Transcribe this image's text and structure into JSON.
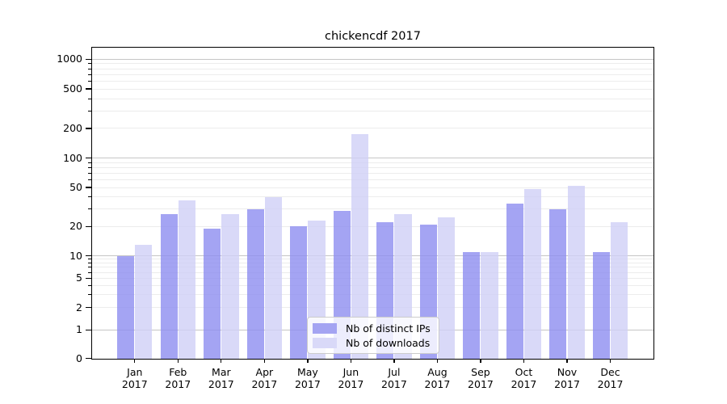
{
  "title": "chickencdf 2017",
  "colors": {
    "ips_solid": "#a4a4f2",
    "downloads_solid": "#d9d9f8",
    "ips_bar": "rgba(141,141,240,0.8)",
    "downloads_bar": "rgba(208,208,246,0.8)",
    "grid_major": "#c6c6c6",
    "grid_minor": "#ececec",
    "axis": "#000000"
  },
  "legend": {
    "items": [
      {
        "label": "Nb of distinct IPs"
      },
      {
        "label": "Nb of downloads"
      }
    ]
  },
  "y_axis": {
    "tick_values": [
      1000,
      500,
      200,
      100,
      50,
      20,
      10,
      5,
      2,
      1,
      0
    ],
    "tick_labels": [
      "1000",
      "500",
      "200",
      "100",
      "50",
      "20",
      "10",
      "5",
      "2",
      "1",
      "0"
    ],
    "minor_values": [
      2,
      3,
      4,
      5,
      6,
      7,
      8,
      9,
      20,
      30,
      40,
      50,
      60,
      70,
      80,
      90,
      200,
      300,
      400,
      500,
      600,
      700,
      800,
      900
    ]
  },
  "x_axis": {
    "months": [
      "Jan",
      "Feb",
      "Mar",
      "Apr",
      "May",
      "Jun",
      "Jul",
      "Aug",
      "Sep",
      "Oct",
      "Nov",
      "Dec"
    ],
    "year": "2017"
  },
  "chart_data": {
    "type": "bar",
    "title": "chickencdf 2017",
    "categories": [
      "Jan 2017",
      "Feb 2017",
      "Mar 2017",
      "Apr 2017",
      "May 2017",
      "Jun 2017",
      "Jul 2017",
      "Aug 2017",
      "Sep 2017",
      "Oct 2017",
      "Nov 2017",
      "Dec 2017"
    ],
    "series": [
      {
        "name": "Nb of distinct IPs",
        "color": "#a4a4f2",
        "values": [
          10,
          27,
          19,
          30,
          20,
          29,
          22,
          21,
          11,
          34,
          30,
          11
        ]
      },
      {
        "name": "Nb of downloads",
        "color": "#d9d9f8",
        "values": [
          13,
          37,
          27,
          40,
          23,
          175,
          27,
          25,
          11,
          48,
          52,
          22
        ]
      }
    ],
    "xlabel": "",
    "ylabel": "",
    "yscale": "symlog",
    "yticks": [
      0,
      1,
      2,
      5,
      10,
      20,
      50,
      100,
      200,
      500,
      1000
    ],
    "ylim": [
      0,
      1300
    ],
    "grid": true,
    "legend_position": "lower center"
  }
}
